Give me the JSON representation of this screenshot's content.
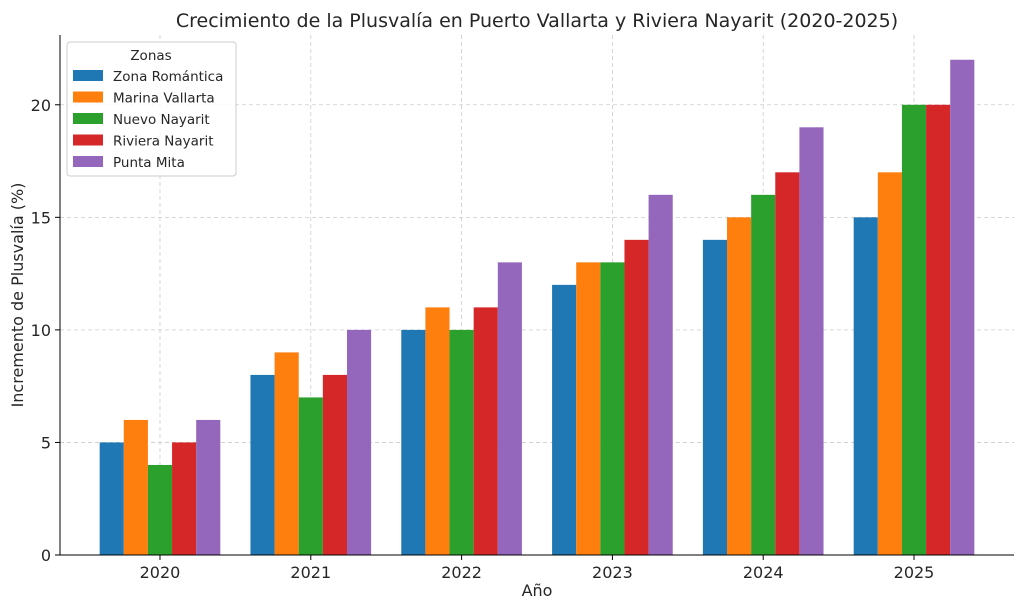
{
  "chart_data": {
    "type": "bar",
    "title": "Crecimiento de la Plusvalía en Puerto Vallarta y Riviera Nayarit (2020-2025)",
    "xlabel": "Año",
    "ylabel": "Incremento de Plusvalía (%)",
    "categories": [
      "2020",
      "2021",
      "2022",
      "2023",
      "2024",
      "2025"
    ],
    "ylim": [
      0,
      23.1
    ],
    "yticks": [
      0,
      5,
      10,
      15,
      20
    ],
    "grid": true,
    "legend": {
      "title": "Zonas",
      "placement": "top-left"
    },
    "series": [
      {
        "name": "Zona Romántica",
        "color": "#1f77b4",
        "values": [
          5,
          8,
          10,
          12,
          14,
          15
        ]
      },
      {
        "name": "Marina Vallarta",
        "color": "#ff7f0e",
        "values": [
          6,
          9,
          11,
          13,
          15,
          17
        ]
      },
      {
        "name": "Nuevo Nayarit",
        "color": "#2ca02c",
        "values": [
          4,
          7,
          10,
          13,
          16,
          20
        ]
      },
      {
        "name": "Riviera Nayarit",
        "color": "#d62728",
        "values": [
          5,
          8,
          11,
          14,
          17,
          20
        ]
      },
      {
        "name": "Punta Mita",
        "color": "#9467bd",
        "values": [
          6,
          10,
          13,
          16,
          19,
          22
        ]
      }
    ]
  }
}
